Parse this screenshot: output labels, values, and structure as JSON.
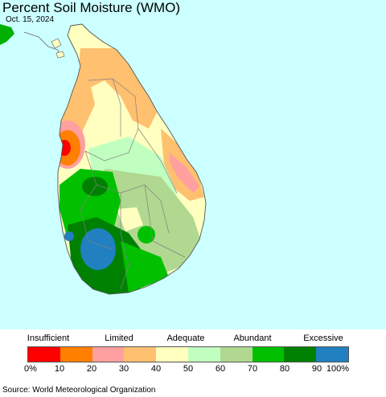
{
  "title": "Percent Soil Moisture (WMO)",
  "date": "Oct. 15, 2024",
  "legend": {
    "categories": [
      {
        "label": "Insufficient"
      },
      {
        "label": "Limited"
      },
      {
        "label": "Adequate"
      },
      {
        "label": "Abundant"
      },
      {
        "label": "Excessive"
      }
    ],
    "colors": [
      "#ff0000",
      "#ff8000",
      "#ffa0a0",
      "#ffc070",
      "#ffffc0",
      "#c0ffc0",
      "#b0d890",
      "#00c000",
      "#008000",
      "#2080c0"
    ],
    "ticks": [
      "0%",
      "10",
      "20",
      "30",
      "40",
      "50",
      "60",
      "70",
      "80",
      "90",
      "100%"
    ]
  },
  "source": "Source: World Meteorological Organization",
  "colors": {
    "ocean": "#ccffff",
    "land_outside": "#ffffff",
    "neighbor_land": "#00b000",
    "border": "#808080"
  }
}
